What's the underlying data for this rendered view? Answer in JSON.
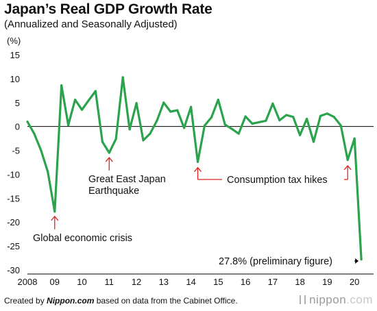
{
  "title": "Japan’s Real GDP Growth Rate",
  "subtitle": "(Annualized and Seasonally Adjusted)",
  "unit": "(%)",
  "credit": {
    "prefix": "Created by ",
    "source_name": "Nippon.com",
    "suffix": " based on data from the Cabinet Office."
  },
  "brand": {
    "name": "nippon",
    "domain": ".com"
  },
  "colors": {
    "line": "#2ba24c",
    "annotation": "#e02020",
    "axis": "#000000"
  },
  "chart_data": {
    "type": "line",
    "title": "Japan’s Real GDP Growth Rate",
    "ylabel": "(%)",
    "ylim": [
      -30,
      15
    ],
    "yticks": [
      15,
      10,
      5,
      0,
      -5,
      -10,
      -15,
      -20,
      -25,
      -30
    ],
    "xlim": [
      2008,
      2020.7
    ],
    "xticks": [
      {
        "value": 2008,
        "label": "2008"
      },
      {
        "value": 2009,
        "label": "09"
      },
      {
        "value": 2010,
        "label": "10"
      },
      {
        "value": 2011,
        "label": "11"
      },
      {
        "value": 2012,
        "label": "12"
      },
      {
        "value": 2013,
        "label": "13"
      },
      {
        "value": 2014,
        "label": "14"
      },
      {
        "value": 2015,
        "label": "15"
      },
      {
        "value": 2016,
        "label": "16"
      },
      {
        "value": 2017,
        "label": "17"
      },
      {
        "value": 2018,
        "label": "18"
      },
      {
        "value": 2019,
        "label": "19"
      },
      {
        "value": 2020,
        "label": "20"
      }
    ],
    "grid": false,
    "series": [
      {
        "x": [
          2008.0,
          2008.25,
          2008.5,
          2008.75,
          2009.0,
          2009.25,
          2009.5,
          2009.75,
          2010.0,
          2010.25,
          2010.5,
          2010.75,
          2011.0,
          2011.25,
          2011.5,
          2011.75,
          2012.0,
          2012.25,
          2012.5,
          2012.75,
          2013.0,
          2013.25,
          2013.5,
          2013.75,
          2014.0,
          2014.25,
          2014.5,
          2014.75,
          2015.0,
          2015.25,
          2015.5,
          2015.75,
          2016.0,
          2016.25,
          2016.5,
          2016.75,
          2017.0,
          2017.25,
          2017.5,
          2017.75,
          2018.0,
          2018.25,
          2018.5,
          2018.75,
          2019.0,
          2019.25,
          2019.5,
          2019.75,
          2020.0,
          2020.25
        ],
        "values": [
          1.0,
          -1.5,
          -5.0,
          -9.5,
          -17.8,
          8.6,
          0.3,
          5.6,
          3.5,
          5.5,
          7.4,
          -3.2,
          -5.5,
          -2.6,
          10.3,
          -0.6,
          4.9,
          -2.9,
          -1.5,
          1.2,
          5.0,
          3.1,
          3.4,
          -0.3,
          4.1,
          -7.4,
          0.2,
          1.9,
          5.6,
          0.4,
          -0.5,
          -1.5,
          2.1,
          0.6,
          0.9,
          1.2,
          4.8,
          1.3,
          2.4,
          2.0,
          -1.8,
          1.6,
          -3.2,
          2.2,
          2.7,
          2.0,
          0.2,
          -7.0,
          -2.5,
          -27.8
        ]
      }
    ],
    "annotations": [
      {
        "text": "Global economic crisis",
        "x": 2009.0,
        "arrow": "up"
      },
      {
        "text": "Great East Japan",
        "text2": "Earthquake",
        "x": 2011.0,
        "arrow": "up"
      },
      {
        "text": "Consumption tax hikes",
        "x": [
          2014.25,
          2019.75
        ],
        "arrow": "outward"
      },
      {
        "text": "27.8% (preliminary figure)",
        "x": 2020.25,
        "arrow": "right"
      }
    ]
  }
}
